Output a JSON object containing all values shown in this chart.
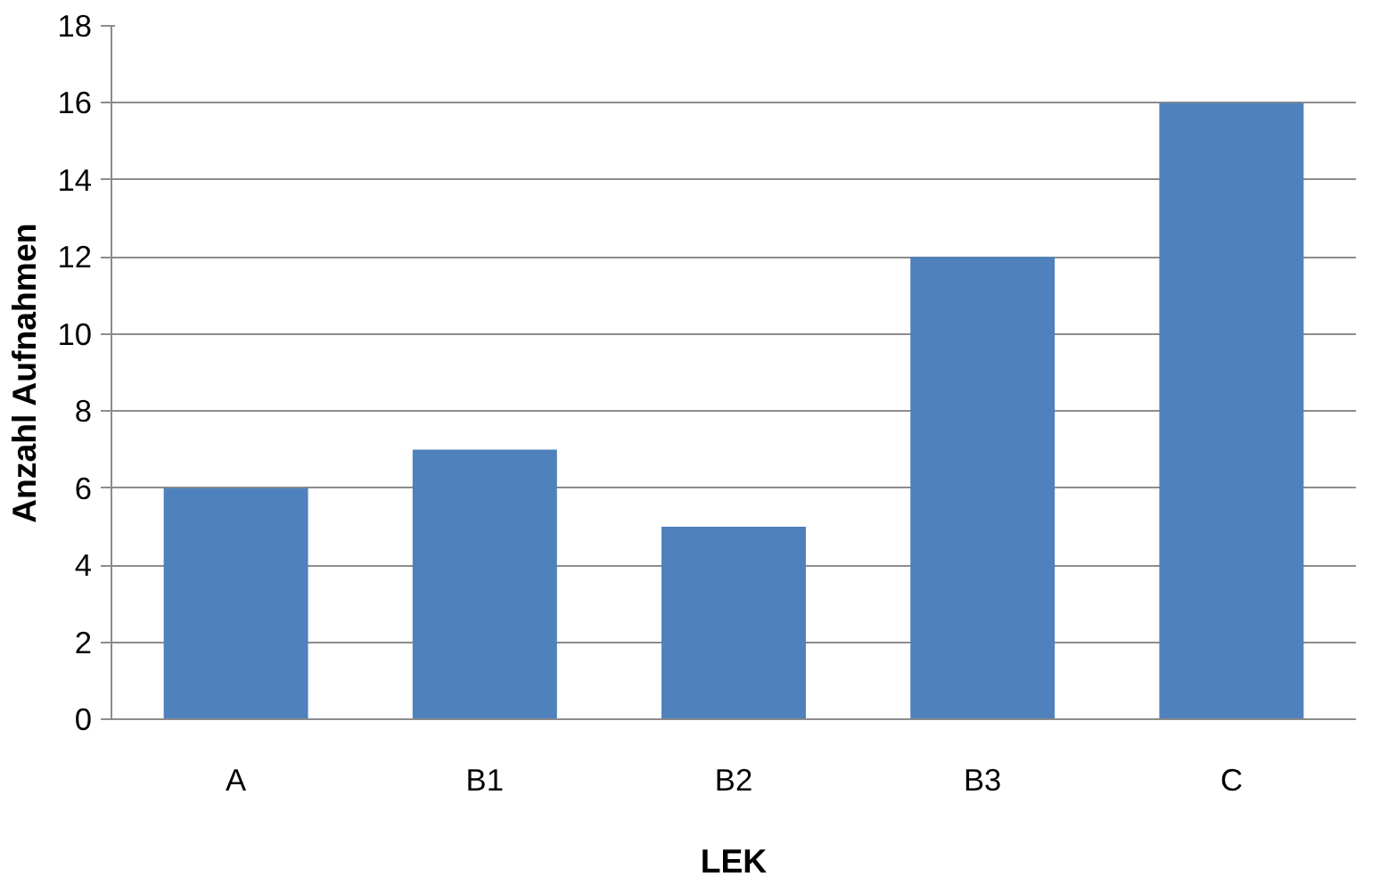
{
  "chart_data": {
    "type": "bar",
    "xlabel": "LEK",
    "ylabel": "Anzahl Aufnahmen",
    "categories": [
      "A",
      "B1",
      "B2",
      "B3",
      "C"
    ],
    "values": [
      6,
      7,
      5,
      12,
      16
    ],
    "color": "#4f81bd",
    "ylim": [
      0,
      18
    ],
    "yticks": [
      0,
      2,
      4,
      6,
      8,
      10,
      12,
      14,
      16,
      18
    ],
    "grid": "y"
  }
}
